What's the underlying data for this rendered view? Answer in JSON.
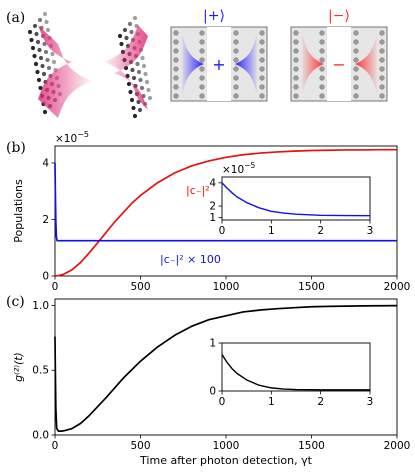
{
  "panels": {
    "a": {
      "label": "(a)",
      "ket_plus": "|+⟩",
      "ket_minus": "|−⟩",
      "sign_plus": "+",
      "sign_minus": "−",
      "colors": {
        "plus": "#1a1aff",
        "minus": "#ff2a2a",
        "pink": "#e0307a"
      }
    },
    "b": {
      "label": "(b)"
    },
    "c": {
      "label": "(c)"
    }
  },
  "chart_data": [
    {
      "type": "line",
      "panel": "b",
      "ylabel": "Populations",
      "xlim": [
        0,
        2000
      ],
      "ylim": [
        0,
        4.6
      ],
      "y_scale_label": "×10",
      "y_scale_exp": "−5",
      "yticks": [
        0,
        2,
        4
      ],
      "ytick_labels": [
        "0",
        "2",
        "4"
      ],
      "xticks": [
        0,
        500,
        1000,
        1500,
        2000
      ],
      "series": [
        {
          "name": "|c₋|²",
          "color": "#e81010",
          "x": [
            0,
            25,
            50,
            100,
            150,
            200,
            250,
            300,
            350,
            400,
            450,
            500,
            600,
            700,
            800,
            900,
            1000,
            1100,
            1200,
            1300,
            1400,
            1500,
            1600,
            1700,
            1800,
            1900,
            2000
          ],
          "y": [
            0,
            0.02,
            0.06,
            0.22,
            0.48,
            0.82,
            1.18,
            1.55,
            1.92,
            2.25,
            2.58,
            2.85,
            3.3,
            3.65,
            3.9,
            4.07,
            4.2,
            4.29,
            4.35,
            4.39,
            4.42,
            4.44,
            4.45,
            4.46,
            4.46,
            4.47,
            4.47
          ]
        },
        {
          "name": "|c₋|² × 100",
          "color": "#1010e8",
          "x": [
            0,
            2,
            5,
            8,
            12,
            2000
          ],
          "y": [
            4.0,
            3.0,
            1.9,
            1.4,
            1.25,
            1.25
          ]
        }
      ],
      "inset": {
        "xlim": [
          0,
          3
        ],
        "ylim": [
          0.8,
          4.5
        ],
        "xticks": [
          0,
          1,
          2,
          3
        ],
        "yticks": [
          1,
          2,
          4
        ],
        "y_scale_label": "×10",
        "y_scale_exp": "−5",
        "series": [
          {
            "color": "#1010e8",
            "x": [
              0,
              0.1,
              0.2,
              0.3,
              0.5,
              0.75,
              1.0,
              1.25,
              1.5,
              2.0,
              2.5,
              3.0
            ],
            "y": [
              4.0,
              3.55,
              3.15,
              2.8,
              2.3,
              1.85,
              1.55,
              1.4,
              1.3,
              1.2,
              1.18,
              1.17
            ]
          }
        ]
      }
    },
    {
      "type": "line",
      "panel": "c",
      "ylabel": "g⁽²⁾(t)",
      "xlabel": "Time after photon detection, γt",
      "xlim": [
        0,
        2000
      ],
      "ylim": [
        0,
        1.05
      ],
      "yticks": [
        0,
        0.5,
        1.0
      ],
      "ytick_labels": [
        "0.0",
        "0.5",
        "1.0"
      ],
      "xticks": [
        0,
        500,
        1000,
        1500,
        2000
      ],
      "series": [
        {
          "color": "#000000",
          "x": [
            0,
            2,
            5,
            10,
            20,
            40,
            60,
            100,
            150,
            200,
            300,
            400,
            500,
            600,
            700,
            800,
            900,
            1000,
            1100,
            1200,
            1300,
            1400,
            1500,
            1600,
            1700,
            1800,
            1900,
            2000
          ],
          "y": [
            0.76,
            0.5,
            0.2,
            0.05,
            0.03,
            0.03,
            0.035,
            0.05,
            0.09,
            0.15,
            0.29,
            0.44,
            0.57,
            0.68,
            0.77,
            0.84,
            0.89,
            0.92,
            0.95,
            0.965,
            0.975,
            0.983,
            0.99,
            0.993,
            0.995,
            0.997,
            0.998,
            0.999
          ]
        }
      ],
      "inset": {
        "xlim": [
          0,
          3
        ],
        "ylim": [
          0,
          1.0
        ],
        "xticks": [
          0,
          1,
          2,
          3
        ],
        "yticks": [
          0,
          1
        ],
        "series": [
          {
            "color": "#000000",
            "x": [
              0,
              0.1,
              0.2,
              0.3,
              0.5,
              0.75,
              1.0,
              1.25,
              1.5,
              2.0,
              2.5,
              3.0
            ],
            "y": [
              0.76,
              0.6,
              0.47,
              0.37,
              0.23,
              0.12,
              0.065,
              0.04,
              0.03,
              0.025,
              0.025,
              0.025
            ]
          }
        ]
      }
    }
  ]
}
